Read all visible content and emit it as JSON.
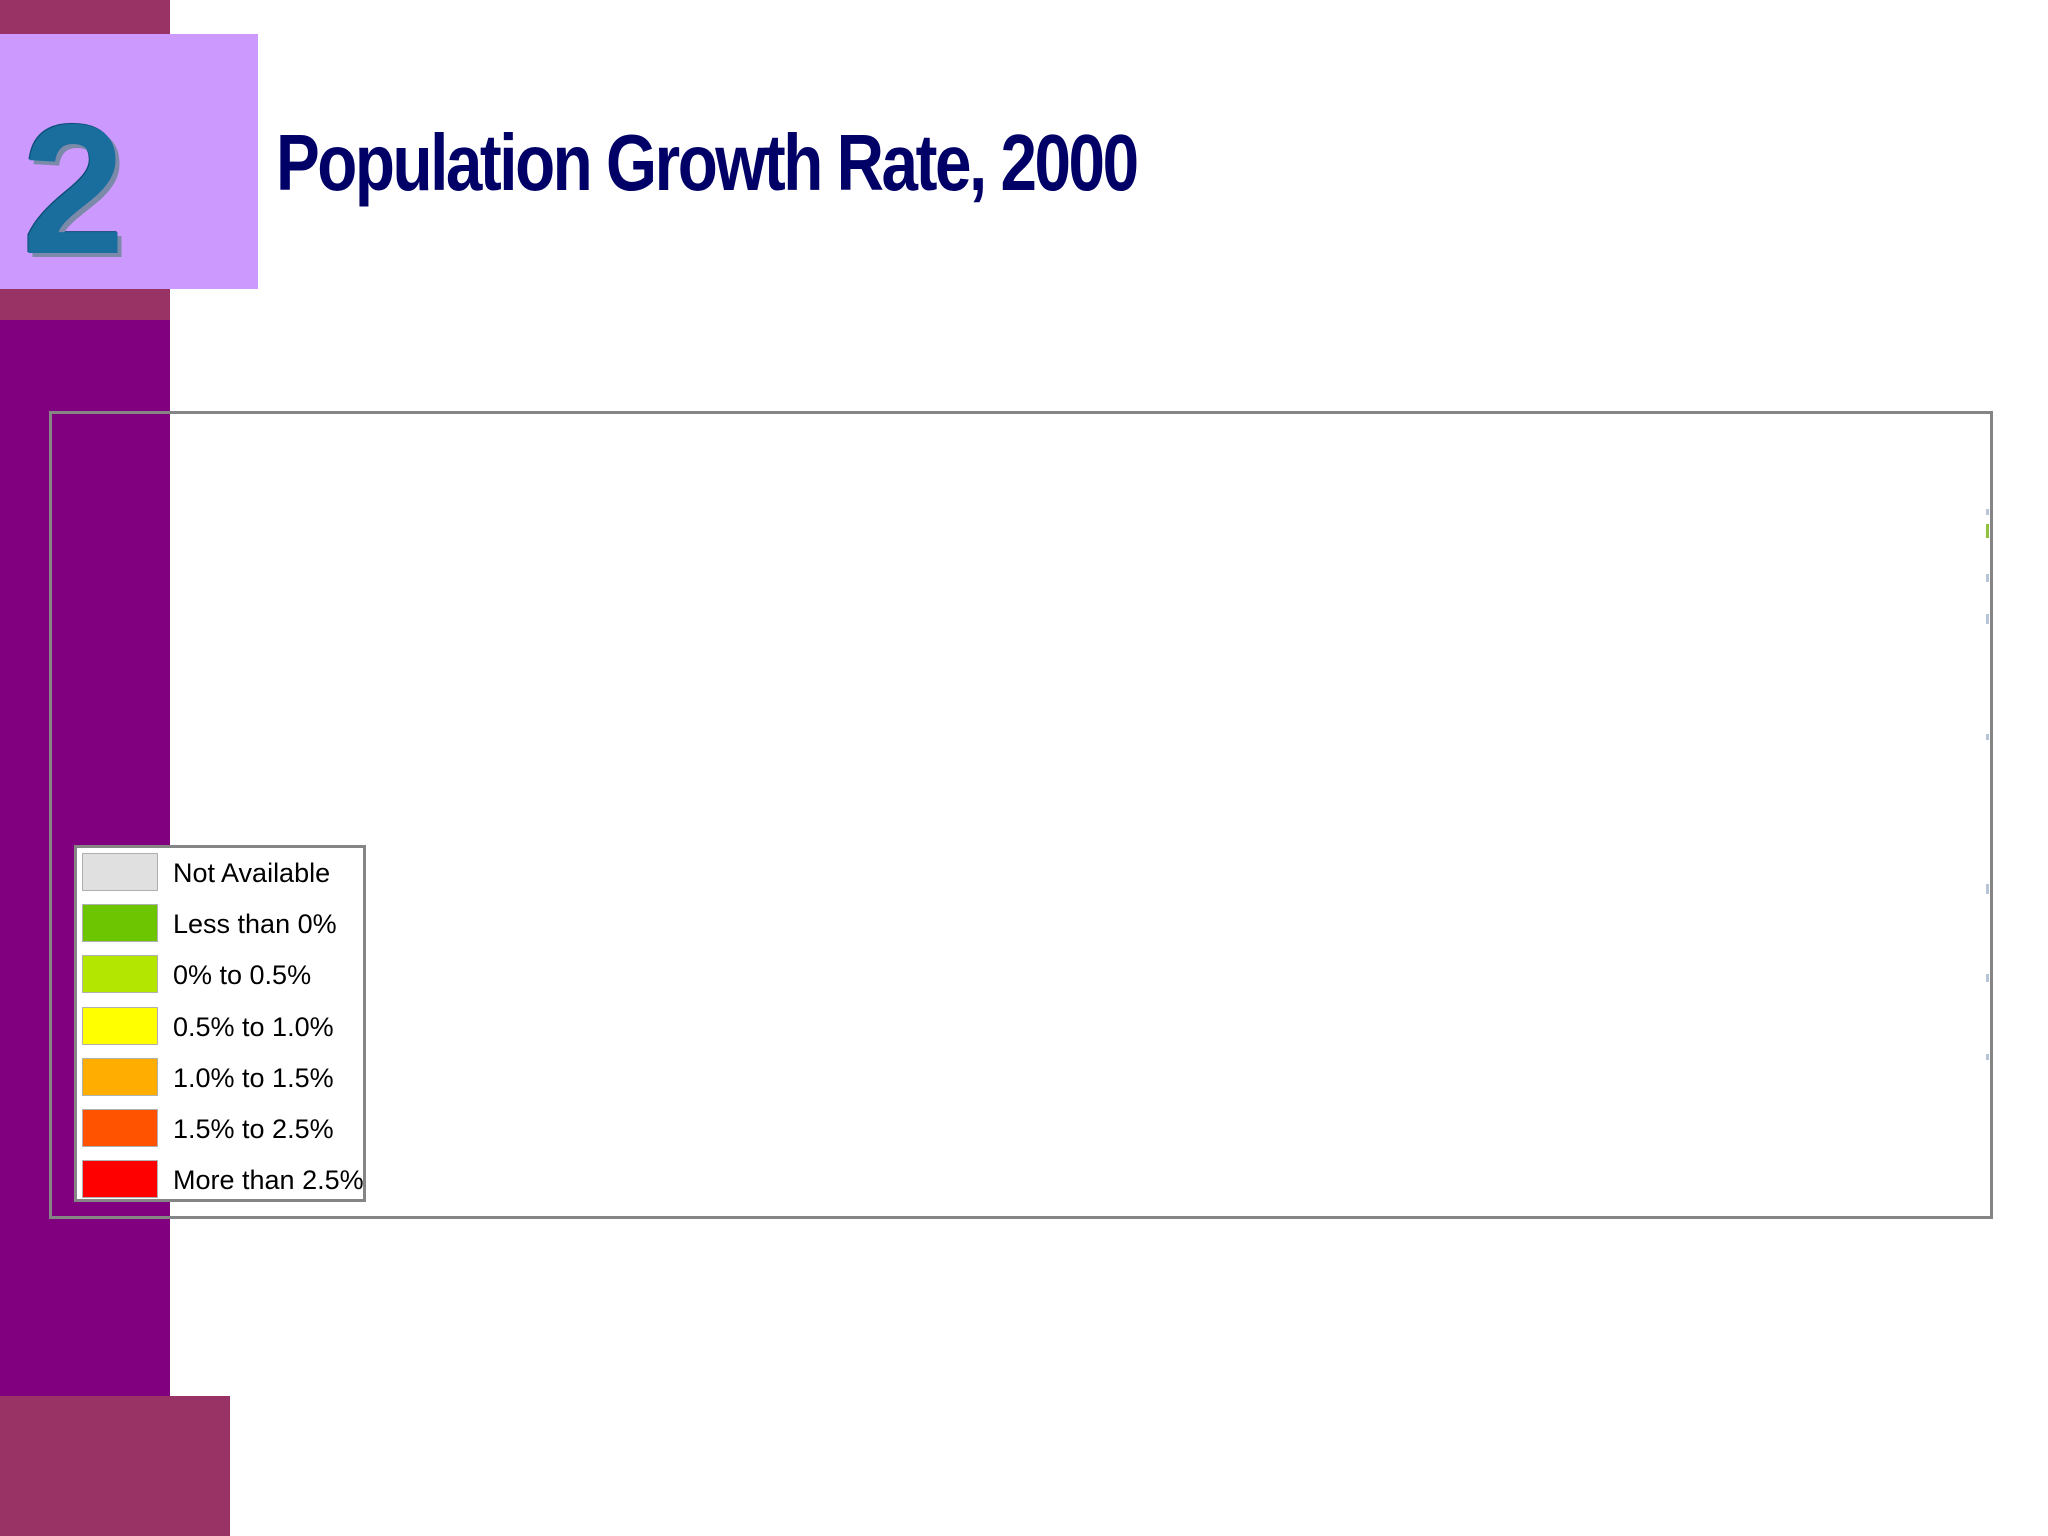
{
  "slide": {
    "number": "2",
    "title": "Population Growth Rate, 2000"
  },
  "colors": {
    "sidebar": "#800080",
    "sidebar_accent": "#993366",
    "number_box": "#cc99ff",
    "number_text": "#1a6e9e",
    "title_text": "#000066",
    "frame_border": "#858585"
  },
  "map": {
    "legend": [
      {
        "label": "Not Available",
        "color": "#e0e0e0"
      },
      {
        "label": "Less than 0%",
        "color": "#6dc400"
      },
      {
        "label": "0% to 0.5%",
        "color": "#b3e600"
      },
      {
        "label": "0.5% to 1.0%",
        "color": "#ffff00"
      },
      {
        "label": "1.0% to 1.5%",
        "color": "#ffad00"
      },
      {
        "label": "1.5% to 2.5%",
        "color": "#ff5300"
      },
      {
        "label": "More than 2.5%",
        "color": "#ff0000"
      }
    ]
  }
}
